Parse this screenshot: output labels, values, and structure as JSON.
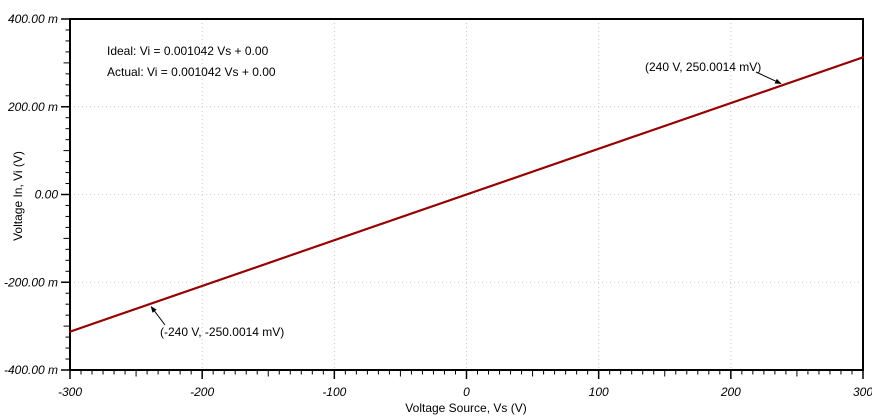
{
  "chart_data": {
    "type": "line",
    "title": "",
    "xlabel": "Voltage Source, Vs (V)",
    "ylabel": "Voltage In, Vi (V)",
    "xlim": [
      -300,
      300
    ],
    "ylim": [
      -0.4,
      0.4
    ],
    "grid": true,
    "legend": "none",
    "x_ticks": [
      {
        "v": -300,
        "label": "-300"
      },
      {
        "v": -200,
        "label": "-200"
      },
      {
        "v": -100,
        "label": "-100"
      },
      {
        "v": 0,
        "label": "0"
      },
      {
        "v": 100,
        "label": "100"
      },
      {
        "v": 200,
        "label": "200"
      },
      {
        "v": 300,
        "label": "300"
      }
    ],
    "y_ticks": [
      {
        "v": 0.4,
        "label": "400.00 m"
      },
      {
        "v": 0.2,
        "label": "200.00 m"
      },
      {
        "v": 0.0,
        "label": "0.00"
      },
      {
        "v": -0.2,
        "label": "-200.00 m"
      },
      {
        "v": -0.4,
        "label": "-400.00 m"
      }
    ],
    "series": [
      {
        "name": "Ideal",
        "slope": 0.001042,
        "intercept": 0.0,
        "x": [
          -300,
          300
        ],
        "y": [
          -0.3126,
          0.3126
        ],
        "color": "#990000"
      },
      {
        "name": "Actual",
        "slope": 0.001042,
        "intercept": 0.0,
        "x": [
          -300,
          300
        ],
        "y": [
          -0.3126,
          0.3126
        ],
        "color": "#990000"
      }
    ],
    "equations": [
      "Ideal: Vi = 0.001042 Vs + 0.00",
      "Actual: Vi = 0.001042 Vs + 0.00"
    ],
    "annotations": [
      {
        "label": "(240 V, 250.0014 mV)",
        "x": 240,
        "y": 0.2500014
      },
      {
        "label": "(-240 V, -250.0014 mV)",
        "x": -240,
        "y": -0.2500014
      }
    ],
    "colors": {
      "trace": "#990000",
      "grid": "#c9c9c9",
      "axis": "#000000",
      "text": "#000000",
      "background": "#ffffff"
    }
  }
}
